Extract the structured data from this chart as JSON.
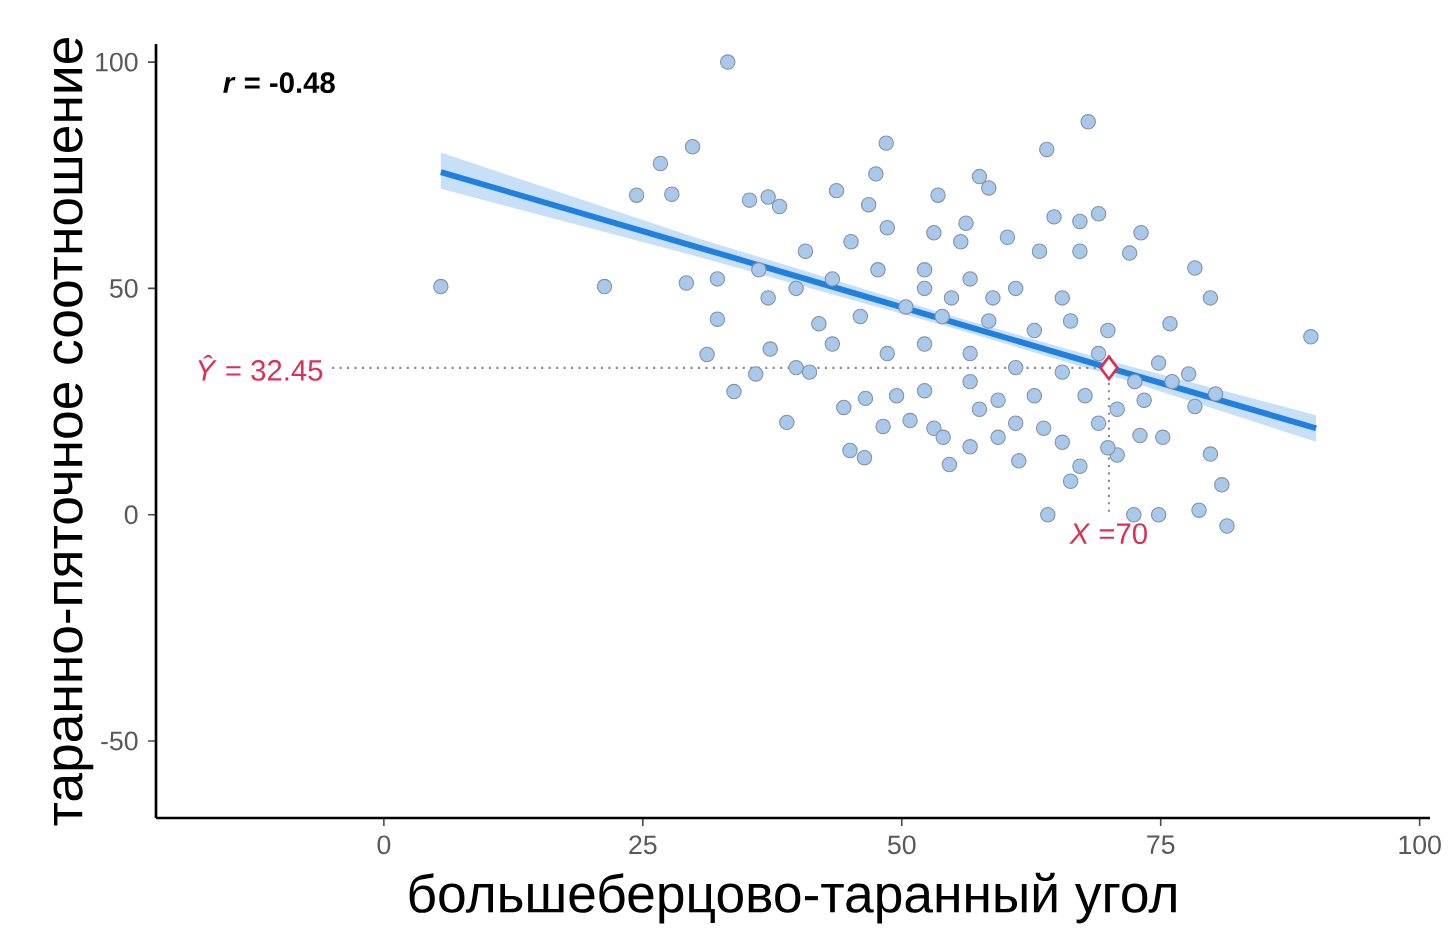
{
  "chart_data": {
    "type": "scatter",
    "xlabel": "большеберцово-таранный угол",
    "ylabel": "таранно-пяточное соотношение",
    "xlim": [
      -22,
      101
    ],
    "ylim": [
      -67,
      104
    ],
    "xticks": [
      0,
      25,
      50,
      75,
      100
    ],
    "yticks": [
      -50,
      0,
      50,
      100
    ],
    "grid": false,
    "annotations": [
      "*r* = -0.48",
      {
        "text": "*Ŷ* = 32.45",
        "x": -5,
        "y": 32.45
      },
      {
        "text": "*X* =70",
        "x": 70,
        "y": 0
      }
    ],
    "series": [
      {
        "marker": "circle",
        "color": "#a9c8ea",
        "x": [
          5.5,
          21.3,
          24.4,
          26.7,
          27.8,
          29.8,
          29.2,
          32.2,
          32.2,
          33.2,
          31.2,
          33.8,
          35.3,
          37.1,
          38.2,
          38.9,
          37.3,
          35.9,
          48.5,
          47.5,
          46.4,
          45.0,
          44.4,
          46.5,
          54.6,
          57.5,
          58.4,
          64.0,
          68.0,
          64.1,
          64.7,
          67.2,
          69.0,
          73.1,
          72.0,
          78.3,
          79.8,
          75.9,
          89.5,
          77.7,
          78.3,
          80.3,
          79.8,
          80.9,
          81.4,
          78.7,
          74.8,
          72.4,
          66.3,
          61.3,
          70.8,
          73.0,
          69.0,
          65.5,
          56.6,
          53.1,
          50.8,
          48.2,
          52.2,
          56.6,
          59.3,
          62.8,
          67.7,
          73.4,
          74.8,
          72.5,
          61.0,
          56.6,
          52.2,
          48.6,
          43.3,
          41.1,
          39.8,
          42.0,
          46.0,
          50.4,
          53.9,
          58.4,
          62.8,
          66.3,
          69.9,
          65.5,
          61.0,
          56.6,
          52.2,
          47.7,
          43.3,
          39.8,
          37.1,
          36.2,
          40.7,
          45.1,
          48.6,
          53.1,
          55.7,
          60.2,
          63.3,
          67.2,
          46.8,
          43.7,
          53.5,
          56.2,
          52.2,
          54.8,
          58.8,
          65.5,
          69.0,
          70.8,
          76.1,
          75.2,
          63.7,
          59.3,
          54.0,
          57.5,
          49.5,
          67.2,
          69.9,
          61.0
        ],
        "values": [
          50.4,
          50.4,
          70.6,
          77.6,
          70.8,
          81.3,
          51.2,
          43.2,
          52.1,
          100,
          35.4,
          27.2,
          69.5,
          70.2,
          68.1,
          20.4,
          36.6,
          31.1,
          82.1,
          75.3,
          12.6,
          14.2,
          23.7,
          25.7,
          11.1,
          74.7,
          72.2,
          80.7,
          86.8,
          0,
          65.8,
          64.8,
          66.5,
          62.3,
          57.8,
          54.5,
          47.9,
          42.2,
          39.3,
          31.1,
          23.9,
          26.7,
          13.4,
          6.6,
          -2.5,
          1.0,
          0,
          0,
          7.4,
          11.9,
          13.2,
          17.5,
          20.2,
          16.0,
          15.0,
          19.1,
          20.8,
          19.5,
          27.4,
          29.4,
          25.3,
          26.3,
          26.3,
          25.3,
          33.5,
          29.4,
          32.5,
          35.6,
          37.7,
          35.6,
          37.7,
          31.5,
          32.5,
          42.2,
          43.8,
          45.9,
          43.8,
          42.8,
          40.7,
          42.8,
          40.7,
          47.9,
          50.0,
          52.1,
          54.1,
          54.1,
          52.1,
          50.0,
          47.9,
          54.1,
          58.2,
          60.3,
          63.4,
          62.3,
          60.3,
          61.3,
          58.2,
          58.2,
          68.5,
          71.6,
          70.6,
          64.4,
          50.0,
          47.9,
          47.9,
          31.5,
          35.6,
          23.3,
          29.4,
          17.1,
          19.1,
          17.1,
          17.1,
          23.3,
          26.3,
          10.7,
          14.8,
          20.2
        ]
      },
      {
        "type": "line",
        "color": "#1f80e0",
        "x": [
          5.5,
          30,
          55,
          70,
          90
        ],
        "values": [
          75.7,
          59.3,
          42.5,
          32.45,
          19.1
        ],
        "lower": [
          72,
          57.2,
          41.2,
          30.9,
          16.1
        ],
        "upper": [
          80,
          61.3,
          43.8,
          34.0,
          22.0
        ]
      },
      {
        "type": "line",
        "line_style": "dotted",
        "color": "#8c8c8c",
        "x": [
          -5,
          70
        ],
        "values": [
          32.45,
          32.45
        ]
      },
      {
        "type": "line",
        "line_style": "dotted",
        "color": "#8c8c8c",
        "x": [
          70,
          70
        ],
        "values": [
          32.45,
          0
        ]
      },
      {
        "marker": "diamond",
        "color": "#dc2f55",
        "x": [
          70
        ],
        "values": [
          32.45
        ]
      }
    ]
  }
}
